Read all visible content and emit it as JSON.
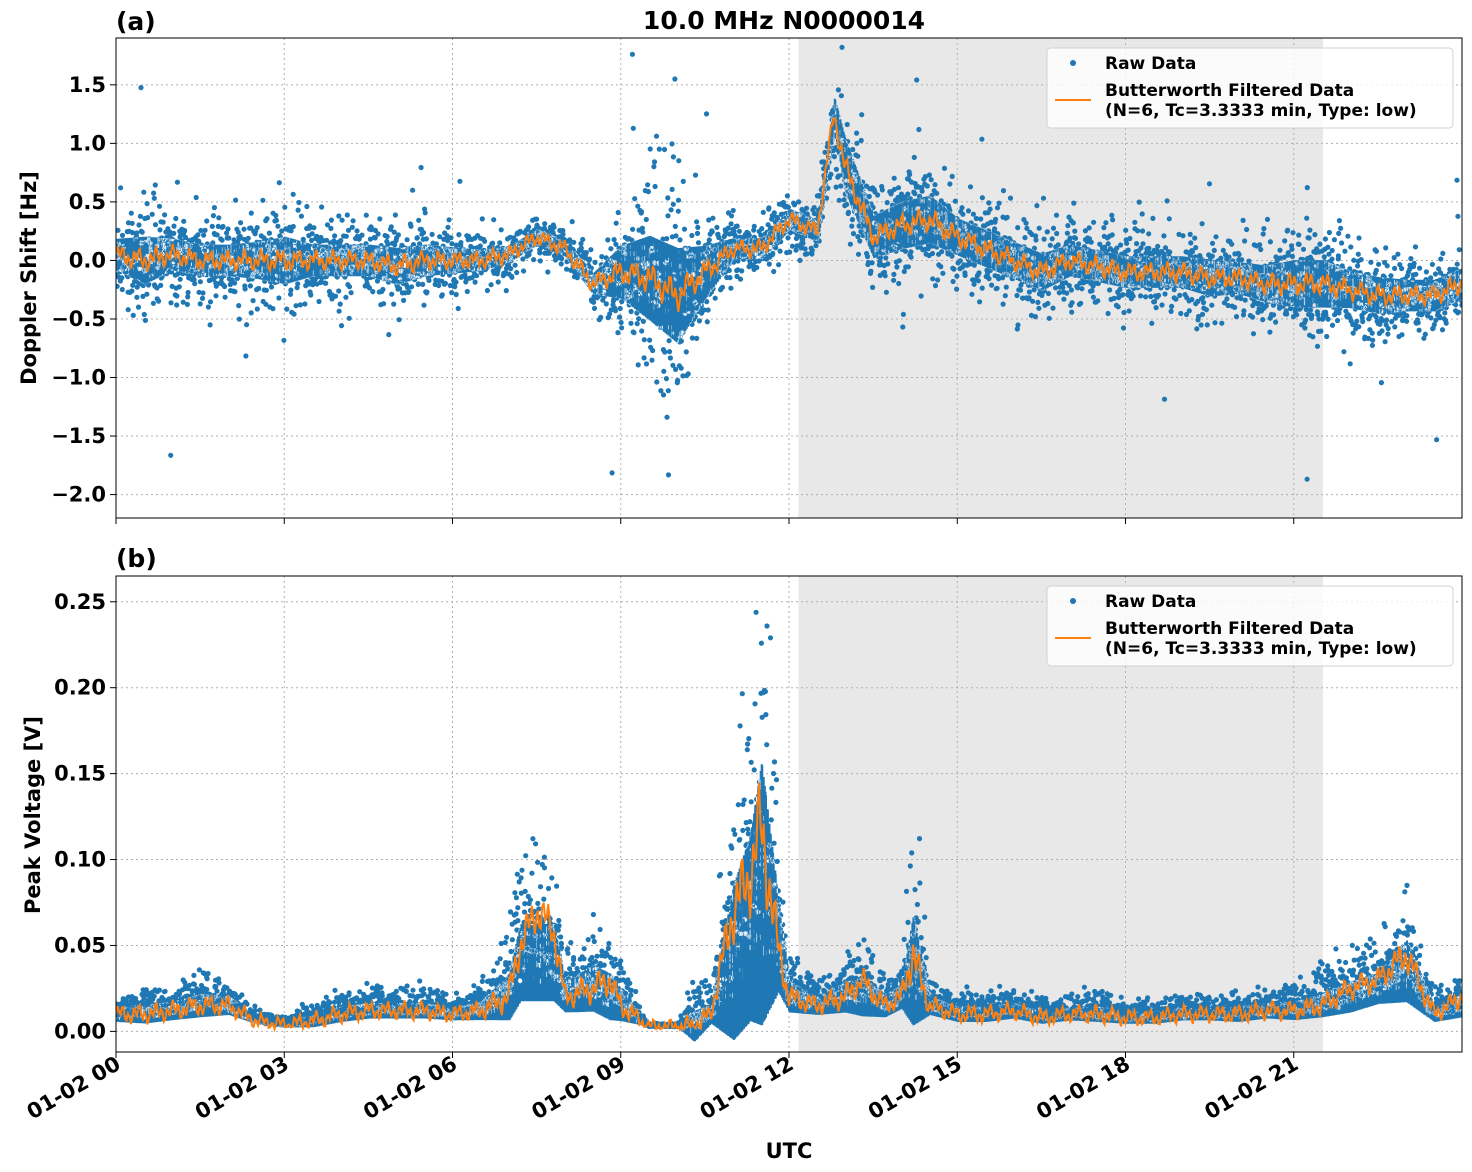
{
  "figure": {
    "title": "10.0 MHz N0000014",
    "xlabel": "UTC"
  },
  "colors": {
    "raw": "#1f77b4",
    "filtered": "#ff7f0e",
    "shade": "#e8e8e8",
    "grid": "#b0b0b0"
  },
  "legend": {
    "raw_label": "Raw Data",
    "filtered_label_line1": "Butterworth Filtered Data",
    "filtered_label_line2": "(N=6, Tc=3.3333 min, Type: low)",
    "placement": "top-right"
  },
  "chart_data": [
    {
      "type": "scatter",
      "panel_label": "(a)",
      "ylabel": "Doppler Shift [Hz]",
      "xlim": [
        0,
        24
      ],
      "ylim": [
        -2.2,
        1.9
      ],
      "yticks": [
        1.5,
        1.0,
        0.5,
        0.0,
        -0.5,
        -1.0,
        -1.5,
        -2.0
      ],
      "ytick_labels": [
        "1.5",
        "1.0",
        "0.5",
        "0.0",
        "−0.5",
        "−1.0",
        "−1.5",
        "−2.0"
      ],
      "xticks": [
        0,
        3,
        6,
        9,
        12,
        15,
        18,
        21
      ],
      "xtick_labels": [
        "01-02 00",
        "01-02 03",
        "01-02 06",
        "01-02 09",
        "01-02 12",
        "01-02 15",
        "01-02 18",
        "01-02 21"
      ],
      "shaded_span": [
        12.17,
        21.52
      ],
      "grid": true,
      "series": [
        {
          "name": "Raw Data",
          "style": "points",
          "x": [
            0,
            0.5,
            1,
            1.5,
            2,
            2.5,
            3,
            3.5,
            4,
            4.5,
            5,
            5.5,
            6,
            6.5,
            7,
            7.5,
            8,
            8.5,
            9,
            9.5,
            10,
            10.5,
            11,
            11.5,
            12,
            12.5,
            12.8,
            13,
            13.5,
            14,
            14.5,
            15,
            15.5,
            16,
            16.5,
            17,
            17.5,
            18,
            18.5,
            19,
            19.5,
            20,
            20.5,
            21,
            21.5,
            22,
            22.5,
            23,
            23.5,
            24
          ],
          "center": [
            0.05,
            0.0,
            0.05,
            0.0,
            0.0,
            0.0,
            0.0,
            0.0,
            0.0,
            0.0,
            -0.05,
            0.0,
            0.0,
            0.0,
            0.05,
            0.2,
            0.1,
            -0.2,
            -0.1,
            -0.15,
            -0.3,
            -0.1,
            0.1,
            0.1,
            0.35,
            0.25,
            1.25,
            0.8,
            0.2,
            0.3,
            0.35,
            0.2,
            0.1,
            0.0,
            -0.1,
            0.0,
            -0.05,
            -0.1,
            -0.1,
            -0.1,
            -0.15,
            -0.15,
            -0.2,
            -0.2,
            -0.2,
            -0.25,
            -0.3,
            -0.3,
            -0.3,
            -0.2
          ],
          "spread": [
            0.3,
            0.45,
            0.3,
            0.3,
            0.3,
            0.35,
            0.45,
            0.3,
            0.3,
            0.3,
            0.35,
            0.3,
            0.25,
            0.2,
            0.15,
            0.15,
            0.15,
            0.2,
            0.5,
            0.8,
            0.9,
            0.5,
            0.2,
            0.2,
            0.2,
            0.2,
            0.3,
            0.5,
            0.4,
            0.45,
            0.45,
            0.35,
            0.35,
            0.35,
            0.35,
            0.3,
            0.3,
            0.3,
            0.3,
            0.3,
            0.35,
            0.3,
            0.35,
            0.45,
            0.45,
            0.35,
            0.35,
            0.3,
            0.3,
            0.3
          ]
        },
        {
          "name": "Butterworth Filtered Data (N=6, Tc=3.3333 min, Type: low)",
          "style": "line",
          "x": [
            0,
            0.5,
            1,
            1.5,
            2,
            2.5,
            3,
            3.5,
            4,
            4.5,
            5,
            5.5,
            6,
            6.5,
            7,
            7.5,
            8,
            8.5,
            9,
            9.5,
            10,
            10.5,
            11,
            11.5,
            12,
            12.5,
            12.8,
            13,
            13.5,
            14,
            14.5,
            15,
            15.5,
            16,
            16.5,
            17,
            17.5,
            18,
            18.5,
            19,
            19.5,
            20,
            20.5,
            21,
            21.5,
            22,
            22.5,
            23,
            23.5,
            24
          ],
          "y": [
            0.05,
            0.0,
            0.05,
            0.0,
            0.0,
            0.0,
            0.0,
            0.0,
            0.0,
            0.0,
            -0.05,
            0.0,
            0.0,
            0.0,
            0.05,
            0.2,
            0.1,
            -0.2,
            -0.1,
            -0.15,
            -0.3,
            -0.1,
            0.1,
            0.1,
            0.35,
            0.25,
            1.25,
            0.8,
            0.2,
            0.3,
            0.35,
            0.2,
            0.1,
            0.0,
            -0.1,
            0.0,
            -0.05,
            -0.1,
            -0.1,
            -0.1,
            -0.15,
            -0.15,
            -0.2,
            -0.2,
            -0.2,
            -0.25,
            -0.3,
            -0.3,
            -0.3,
            -0.2
          ]
        }
      ]
    },
    {
      "type": "scatter",
      "panel_label": "(b)",
      "ylabel": "Peak Voltage [V]",
      "xlim": [
        0,
        24
      ],
      "ylim": [
        -0.012,
        0.265
      ],
      "yticks": [
        0.25,
        0.2,
        0.15,
        0.1,
        0.05,
        0.0
      ],
      "ytick_labels": [
        "0.25",
        "0.20",
        "0.15",
        "0.10",
        "0.05",
        "0.00"
      ],
      "xticks": [
        0,
        3,
        6,
        9,
        12,
        15,
        18,
        21
      ],
      "xtick_labels": [
        "01-02 00",
        "01-02 03",
        "01-02 06",
        "01-02 09",
        "01-02 12",
        "01-02 15",
        "01-02 18",
        "01-02 21"
      ],
      "shaded_span": [
        12.17,
        21.52
      ],
      "grid": true,
      "series": [
        {
          "name": "Raw Data",
          "style": "points",
          "x": [
            0,
            0.5,
            1,
            1.5,
            2,
            2.5,
            3,
            3.5,
            4,
            4.5,
            5,
            5.5,
            6,
            6.5,
            7,
            7.2,
            7.5,
            7.8,
            8,
            8.5,
            8.8,
            9,
            9.5,
            10,
            10.3,
            10.6,
            11,
            11.3,
            11.5,
            11.8,
            12,
            12.5,
            13,
            13.3,
            13.7,
            14,
            14.2,
            14.5,
            15,
            15.5,
            16,
            16.5,
            17,
            17.5,
            18,
            18.5,
            19,
            19.5,
            20,
            20.5,
            21,
            21.5,
            22,
            22.5,
            23,
            23.5,
            24
          ],
          "center": [
            0.01,
            0.01,
            0.012,
            0.015,
            0.015,
            0.006,
            0.004,
            0.006,
            0.01,
            0.012,
            0.012,
            0.012,
            0.01,
            0.012,
            0.02,
            0.04,
            0.04,
            0.04,
            0.02,
            0.025,
            0.02,
            0.015,
            0.003,
            0.003,
            0.003,
            0.01,
            0.04,
            0.06,
            0.08,
            0.05,
            0.02,
            0.015,
            0.02,
            0.02,
            0.015,
            0.02,
            0.035,
            0.015,
            0.01,
            0.01,
            0.012,
            0.008,
            0.01,
            0.01,
            0.008,
            0.008,
            0.01,
            0.01,
            0.01,
            0.012,
            0.012,
            0.015,
            0.02,
            0.025,
            0.035,
            0.01,
            0.015
          ],
          "spread": [
            0.01,
            0.012,
            0.012,
            0.015,
            0.012,
            0.004,
            0.004,
            0.008,
            0.01,
            0.01,
            0.01,
            0.01,
            0.008,
            0.012,
            0.03,
            0.05,
            0.05,
            0.05,
            0.02,
            0.03,
            0.03,
            0.02,
            0.001,
            0.001,
            0.02,
            0.012,
            0.1,
            0.12,
            0.17,
            0.06,
            0.02,
            0.012,
            0.02,
            0.025,
            0.015,
            0.015,
            0.07,
            0.012,
            0.01,
            0.01,
            0.01,
            0.008,
            0.008,
            0.01,
            0.008,
            0.008,
            0.008,
            0.008,
            0.01,
            0.01,
            0.012,
            0.015,
            0.02,
            0.02,
            0.04,
            0.01,
            0.015
          ]
        },
        {
          "name": "Butterworth Filtered Data (N=6, Tc=3.3333 min, Type: low)",
          "style": "line",
          "x": [
            0,
            0.5,
            1,
            1.5,
            2,
            2.5,
            3,
            3.5,
            4,
            4.5,
            5,
            5.5,
            6,
            6.5,
            7,
            7.2,
            7.5,
            7.8,
            8,
            8.5,
            8.8,
            9,
            9.5,
            10,
            10.3,
            10.6,
            11,
            11.3,
            11.5,
            11.8,
            12,
            12.5,
            13,
            13.3,
            13.7,
            14,
            14.2,
            14.5,
            15,
            15.5,
            16,
            16.5,
            17,
            17.5,
            18,
            18.5,
            19,
            19.5,
            20,
            20.5,
            21,
            21.5,
            22,
            22.5,
            23,
            23.5,
            24
          ],
          "y": [
            0.01,
            0.01,
            0.012,
            0.015,
            0.015,
            0.006,
            0.004,
            0.006,
            0.01,
            0.012,
            0.012,
            0.012,
            0.01,
            0.012,
            0.02,
            0.05,
            0.07,
            0.06,
            0.02,
            0.025,
            0.03,
            0.015,
            0.003,
            0.003,
            0.003,
            0.01,
            0.07,
            0.09,
            0.12,
            0.05,
            0.02,
            0.015,
            0.02,
            0.03,
            0.015,
            0.02,
            0.045,
            0.015,
            0.01,
            0.01,
            0.012,
            0.008,
            0.01,
            0.01,
            0.008,
            0.008,
            0.01,
            0.01,
            0.01,
            0.012,
            0.012,
            0.015,
            0.025,
            0.03,
            0.045,
            0.01,
            0.02
          ]
        }
      ]
    }
  ]
}
